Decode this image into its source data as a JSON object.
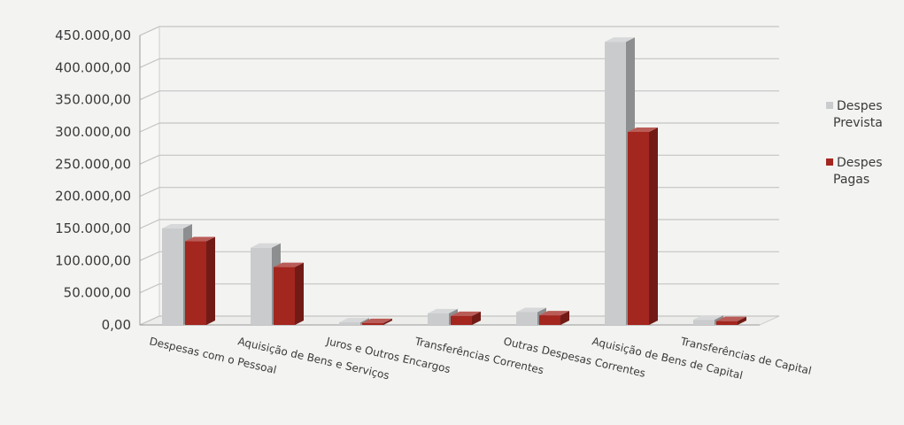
{
  "chart_data": {
    "type": "bar",
    "categories": [
      "Despesas com o Pessoal",
      "Aquisição de Bens e Serviços",
      "Juros e Outros Encargos",
      "Transferências Correntes",
      "Outras Despesas Correntes",
      "Aquisição de Bens de Capital",
      "Transferências de Capital"
    ],
    "series": [
      {
        "name": "Despes Prevista",
        "color": "#c9cbcc",
        "values": [
          150000,
          120000,
          4000,
          18000,
          20000,
          440000,
          8000
        ]
      },
      {
        "name": "Despes Pagas",
        "color": "#a3261f",
        "values": [
          130000,
          90000,
          3000,
          14000,
          15000,
          300000,
          6000
        ]
      }
    ],
    "y_ticks": [
      "0,00",
      "50.000,00",
      "100.000,00",
      "150.000,00",
      "200.000,00",
      "250.000,00",
      "300.000,00",
      "350.000,00",
      "400.000,00",
      "450.000,00"
    ],
    "ylim": [
      0,
      450000
    ],
    "grid": true,
    "legend_position": "right",
    "three_d": true
  }
}
